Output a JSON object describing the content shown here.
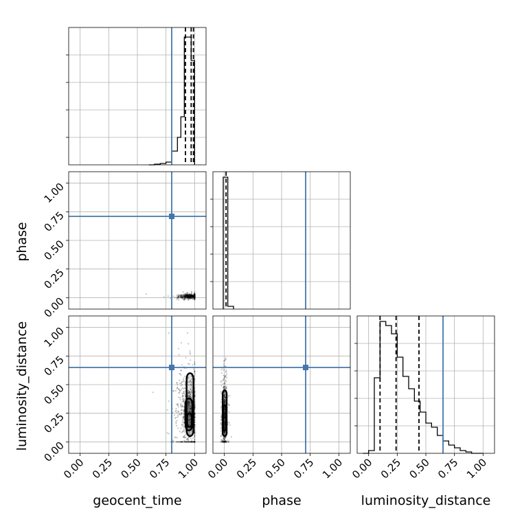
{
  "chart_data": {
    "type": "corner",
    "parameters": [
      "geocent_time",
      "phase",
      "luminosity_distance"
    ],
    "axis_labels": {
      "geocent_time": "geocent_time",
      "phase": "phase",
      "luminosity_distance": "luminosity_distance"
    },
    "xlim": [
      -0.1,
      1.1
    ],
    "ylim": [
      -0.1,
      1.1
    ],
    "ticks": [
      0.0,
      0.25,
      0.5,
      0.75,
      1.0
    ],
    "tick_labels": [
      "0.00",
      "0.25",
      "0.50",
      "0.75",
      "1.00"
    ],
    "grid": true,
    "truth_color": "#4477aa",
    "hist_color": "#000000",
    "truths": {
      "geocent_time": 0.8,
      "phase": 0.71,
      "luminosity_distance": 0.65
    },
    "quantiles": {
      "geocent_time": [
        0.92,
        0.97,
        0.99
      ],
      "phase": [
        0.015
      ],
      "luminosity_distance": [
        0.1,
        0.24,
        0.44
      ]
    },
    "histograms": {
      "geocent_time": {
        "edges": [
          0.6,
          0.65,
          0.7,
          0.75,
          0.8,
          0.85,
          0.88,
          0.91,
          0.94,
          0.97,
          1.0
        ],
        "counts": [
          0.0,
          0.005,
          0.01,
          0.02,
          0.1,
          0.2,
          0.35,
          0.93,
          0.93,
          0.76
        ]
      },
      "phase": {
        "edges": [
          -0.01,
          0.03,
          0.08
        ],
        "counts": [
          0.96,
          0.02
        ]
      },
      "luminosity_distance": {
        "edges": [
          -0.05,
          0.0,
          0.05,
          0.1,
          0.15,
          0.2,
          0.25,
          0.3,
          0.35,
          0.4,
          0.45,
          0.5,
          0.55,
          0.6,
          0.65,
          0.7,
          0.75,
          0.8,
          0.85,
          0.9,
          1.0
        ],
        "counts": [
          0.0,
          0.02,
          0.55,
          0.96,
          0.93,
          0.87,
          0.7,
          0.56,
          0.47,
          0.38,
          0.3,
          0.22,
          0.19,
          0.13,
          0.09,
          0.06,
          0.04,
          0.02,
          0.01,
          0.0
        ]
      }
    },
    "scatter_density": [
      {
        "x_param": "geocent_time",
        "y_param": "phase",
        "x_center": 0.96,
        "y_center": 0.01,
        "x_spread": 0.05,
        "y_spread": 0.01,
        "n_points": 450,
        "x_range": [
          0.5,
          1.0
        ],
        "y_range": [
          -0.02,
          0.25
        ]
      },
      {
        "x_param": "geocent_time",
        "y_param": "luminosity_distance",
        "x_center": 0.95,
        "y_center": 0.25,
        "x_spread": 0.05,
        "y_spread": 0.18,
        "n_points": 700,
        "x_range": [
          0.4,
          1.0
        ],
        "y_range": [
          0.0,
          0.95
        ]
      },
      {
        "x_param": "phase",
        "y_param": "luminosity_distance",
        "x_center": 0.0,
        "y_center": 0.22,
        "x_spread": 0.01,
        "y_spread": 0.17,
        "n_points": 550,
        "x_range": [
          -0.03,
          0.25
        ],
        "y_range": [
          0.0,
          0.95
        ]
      }
    ],
    "contours": [
      {
        "x_param": "geocent_time",
        "y_param": "luminosity_distance",
        "levels": [
          {
            "x": [
              0.93,
              0.99
            ],
            "y": [
              0.05,
              0.6
            ]
          },
          {
            "x": [
              0.92,
              0.98
            ],
            "y": [
              0.1,
              0.38
            ]
          },
          {
            "x": [
              0.935,
              0.975
            ],
            "y": [
              0.13,
              0.25
            ]
          }
        ]
      },
      {
        "x_param": "phase",
        "y_param": "luminosity_distance",
        "levels": [
          {
            "x": [
              -0.015,
              0.02
            ],
            "y": [
              0.05,
              0.45
            ]
          },
          {
            "x": [
              -0.01,
              0.015
            ],
            "y": [
              0.1,
              0.32
            ]
          }
        ]
      }
    ]
  }
}
